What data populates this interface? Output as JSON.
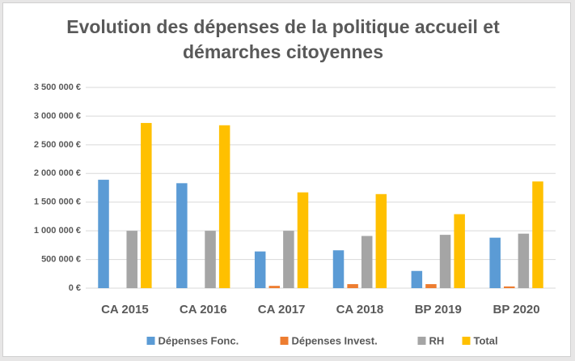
{
  "chart_data": {
    "type": "bar",
    "title": "Evolution des dépenses de la politique accueil et démarches citoyennes",
    "categories": [
      "CA 2015",
      "CA 2016",
      "CA 2017",
      "CA 2018",
      "BP 2019",
      "BP 2020"
    ],
    "series": [
      {
        "name": "Dépenses Fonc.",
        "color": "#5b9bd5",
        "values": [
          1890000,
          1830000,
          640000,
          660000,
          300000,
          880000
        ]
      },
      {
        "name": "Dépenses Invest.",
        "color": "#ed7d31",
        "values": [
          0,
          0,
          40000,
          70000,
          70000,
          30000
        ]
      },
      {
        "name": "RH",
        "color": "#a5a5a5",
        "values": [
          1000000,
          1000000,
          1000000,
          910000,
          930000,
          950000
        ]
      },
      {
        "name": "Total",
        "color": "#ffc000",
        "values": [
          2880000,
          2840000,
          1670000,
          1640000,
          1290000,
          1860000
        ]
      }
    ],
    "ylim": [
      0,
      3500000
    ],
    "yticks": [
      {
        "value": 0,
        "label": "0 €"
      },
      {
        "value": 500000,
        "label": "500 000 €"
      },
      {
        "value": 1000000,
        "label": "1 000 000 €"
      },
      {
        "value": 1500000,
        "label": "1 500 000 €"
      },
      {
        "value": 2000000,
        "label": "2 000 000 €"
      },
      {
        "value": 2500000,
        "label": "2 500 000 €"
      },
      {
        "value": 3000000,
        "label": "3 000 000 €"
      },
      {
        "value": 3500000,
        "label": "3 500 000 €"
      }
    ],
    "grid": true,
    "legend": "bottom"
  }
}
